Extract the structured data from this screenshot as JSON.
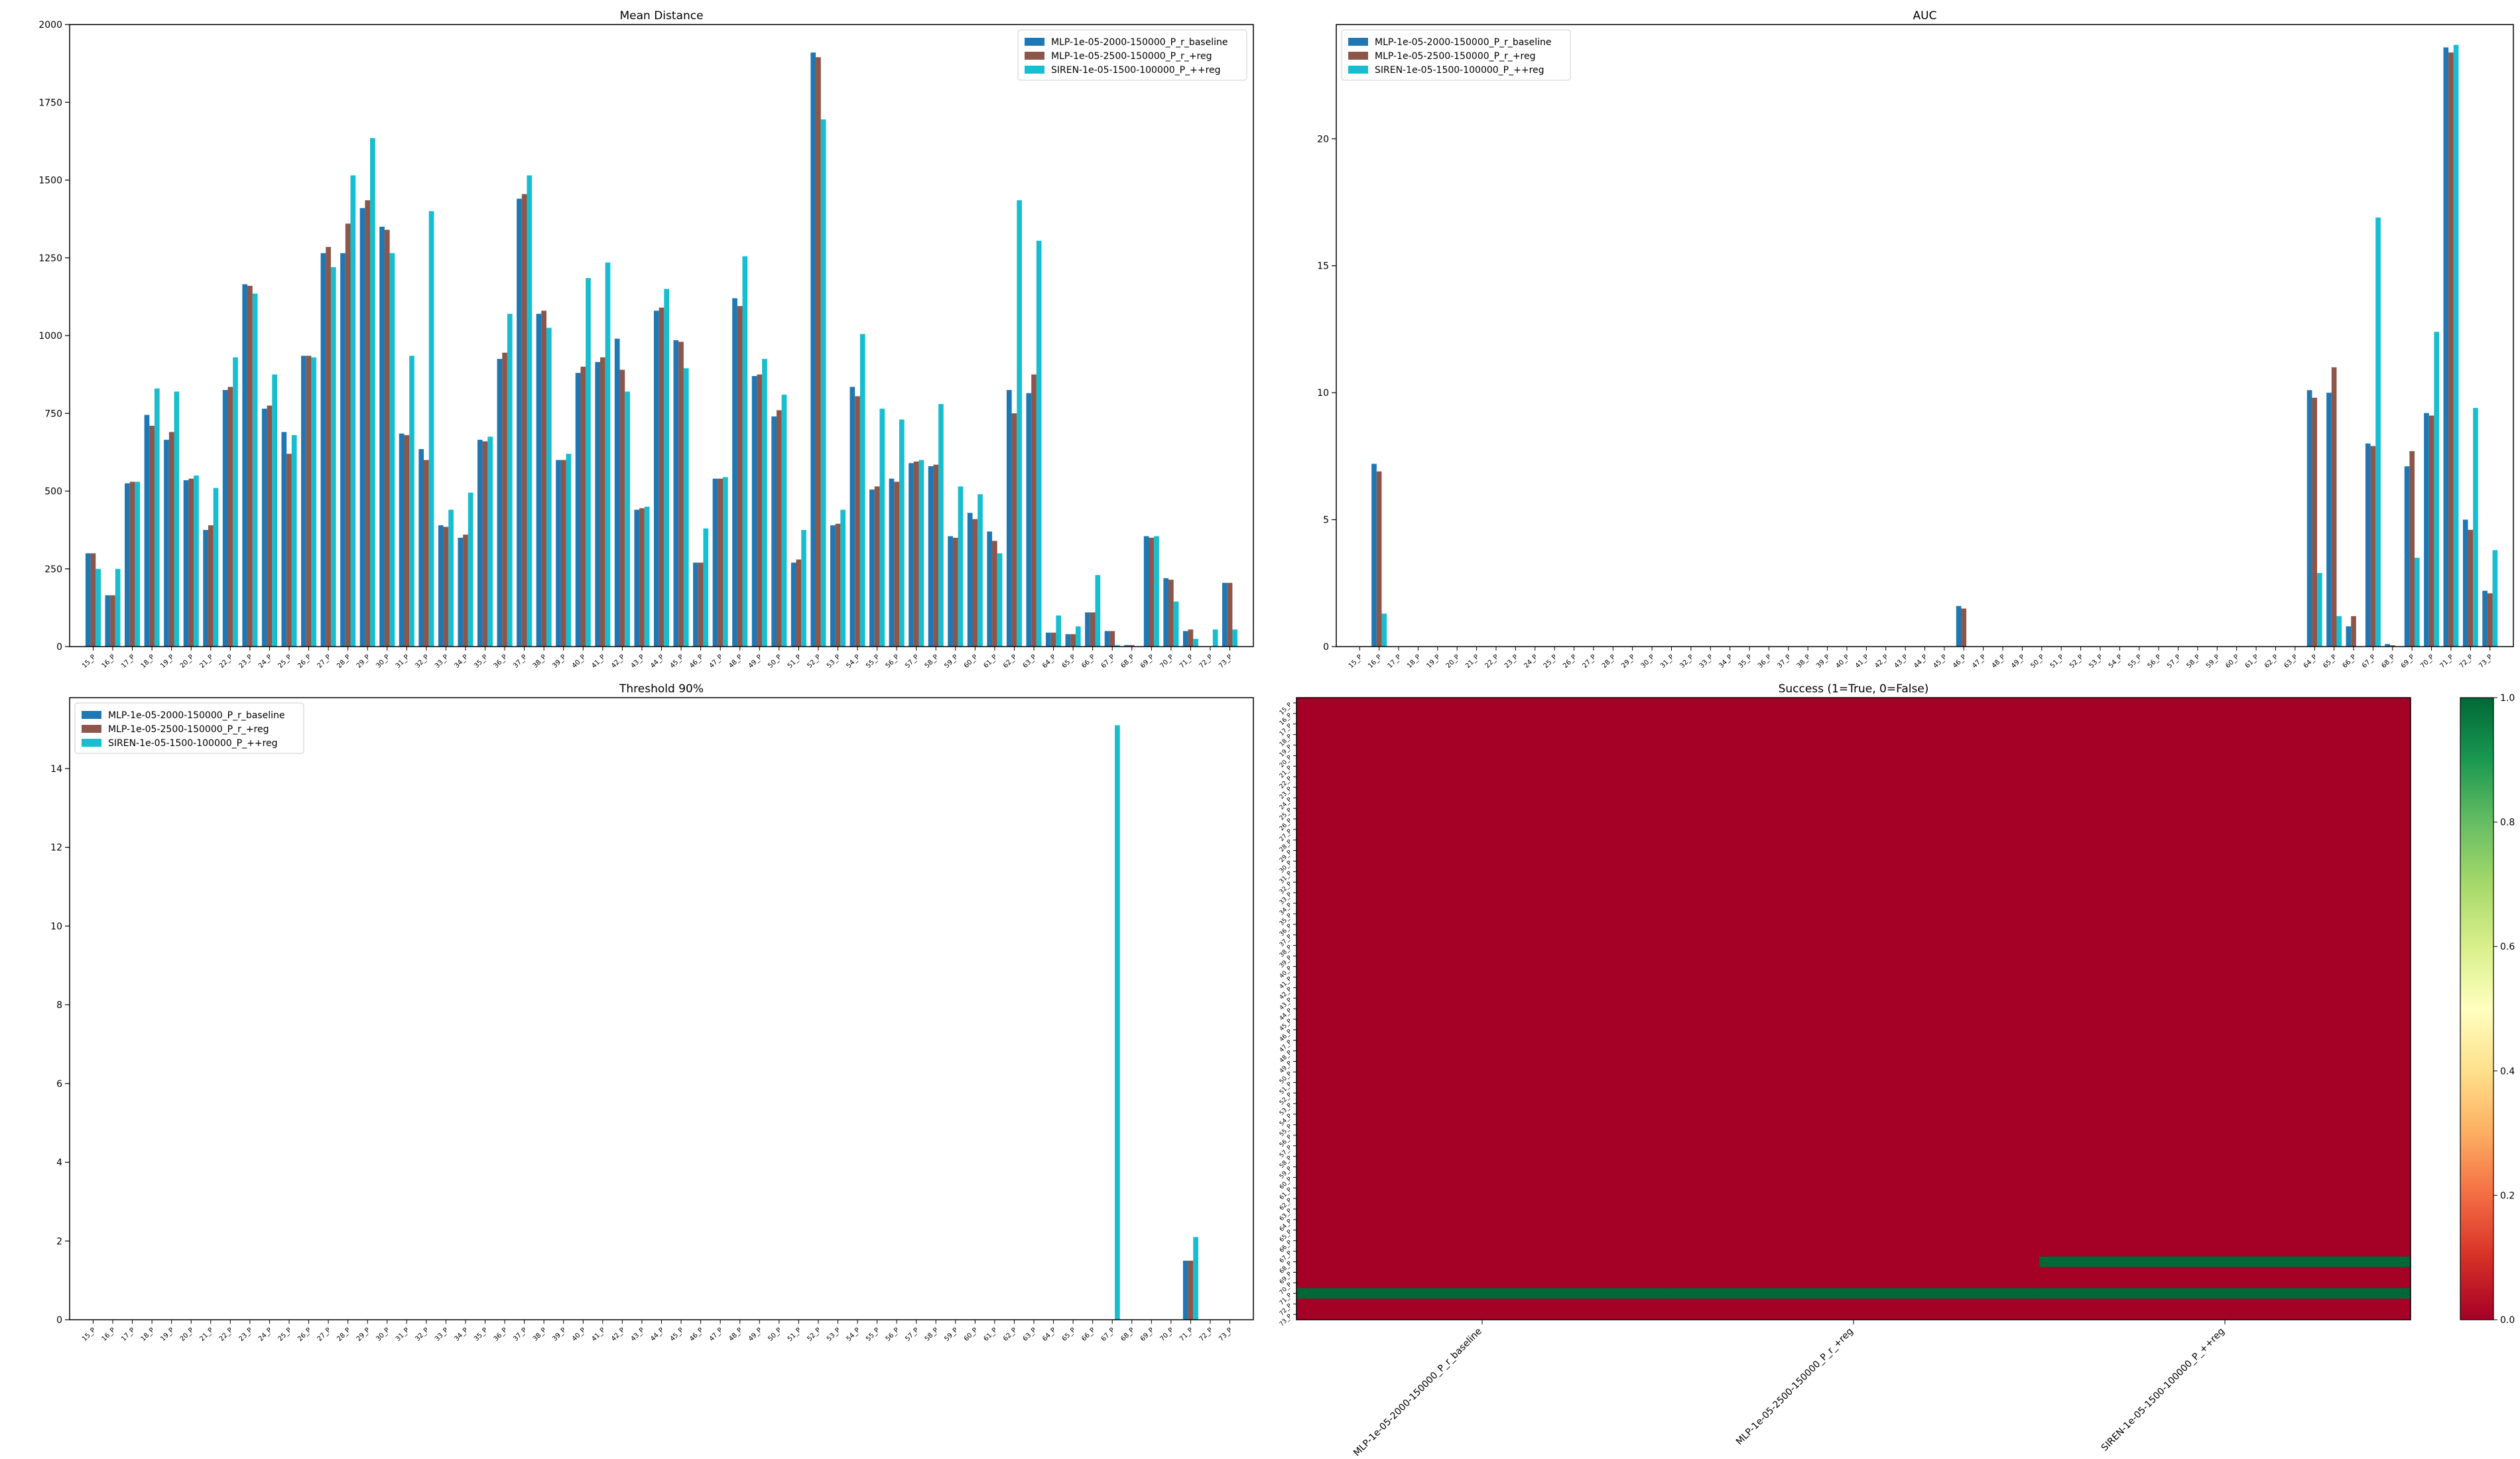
{
  "categories": [
    "15_P",
    "16_P",
    "17_P",
    "18_P",
    "19_P",
    "20_P",
    "21_P",
    "22_P",
    "23_P",
    "24_P",
    "25_P",
    "26_P",
    "27_P",
    "28_P",
    "29_P",
    "30_P",
    "31_P",
    "32_P",
    "33_P",
    "34_P",
    "35_P",
    "36_P",
    "37_P",
    "38_P",
    "39_P",
    "40_P",
    "41_P",
    "42_P",
    "43_P",
    "44_P",
    "45_P",
    "46_P",
    "47_P",
    "48_P",
    "49_P",
    "50_P",
    "51_P",
    "52_P",
    "53_P",
    "54_P",
    "55_P",
    "56_P",
    "57_P",
    "58_P",
    "59_P",
    "60_P",
    "61_P",
    "62_P",
    "63_P",
    "64_P",
    "65_P",
    "66_P",
    "67_P",
    "68_P",
    "69_P",
    "70_P",
    "71_P",
    "72_P",
    "73_P"
  ],
  "series_names": [
    "MLP-1e-05-2000-150000_P_r_baseline",
    "MLP-1e-05-2500-150000_P_r_+reg",
    "SIREN-1e-05-1500-100000_P_++reg"
  ],
  "colors": {
    "s0": "#1f77b4",
    "s1": "#8c564b",
    "s2": "#17becf",
    "fail": "#a50026",
    "success": "#006837"
  },
  "chart_data": [
    {
      "type": "bar",
      "title": "Mean Distance",
      "ylim": [
        0,
        2000
      ],
      "yticks": [
        0,
        250,
        500,
        750,
        1000,
        1250,
        1500,
        1750,
        2000
      ],
      "legend": "top-right",
      "series": [
        {
          "name": "MLP-1e-05-2000-150000_P_r_baseline",
          "values": [
            300,
            165,
            525,
            745,
            665,
            535,
            375,
            825,
            1165,
            765,
            690,
            935,
            1265,
            1265,
            1410,
            1350,
            685,
            635,
            390,
            350,
            665,
            925,
            1440,
            1070,
            600,
            880,
            915,
            990,
            440,
            1080,
            985,
            270,
            540,
            1120,
            870,
            740,
            270,
            1910,
            390,
            835,
            505,
            540,
            590,
            580,
            355,
            430,
            370,
            825,
            815,
            45,
            40,
            110,
            50,
            5,
            355,
            220,
            50,
            0,
            205
          ]
        },
        {
          "name": "MLP-1e-05-2500-150000_P_r_+reg",
          "values": [
            300,
            165,
            530,
            710,
            690,
            540,
            390,
            835,
            1160,
            775,
            620,
            935,
            1285,
            1360,
            1435,
            1340,
            680,
            600,
            385,
            360,
            660,
            945,
            1455,
            1080,
            600,
            900,
            930,
            890,
            445,
            1090,
            980,
            270,
            540,
            1095,
            875,
            760,
            280,
            1895,
            395,
            805,
            515,
            530,
            595,
            585,
            350,
            410,
            340,
            750,
            875,
            45,
            40,
            110,
            50,
            5,
            350,
            215,
            55,
            0,
            205
          ]
        },
        {
          "name": "SIREN-1e-05-1500-100000_P_++reg",
          "values": [
            250,
            250,
            530,
            830,
            820,
            550,
            510,
            930,
            1135,
            875,
            680,
            930,
            1220,
            1515,
            1635,
            1265,
            935,
            1400,
            440,
            495,
            675,
            1070,
            1515,
            1025,
            620,
            1185,
            1235,
            820,
            450,
            1150,
            895,
            380,
            545,
            1255,
            925,
            810,
            375,
            1695,
            440,
            1005,
            765,
            730,
            600,
            780,
            515,
            490,
            300,
            1435,
            1305,
            100,
            65,
            230,
            5,
            0,
            355,
            145,
            25,
            55,
            55
          ]
        }
      ]
    },
    {
      "type": "bar",
      "title": "AUC",
      "ylim": [
        0,
        24.5
      ],
      "yticks": [
        0,
        5,
        10,
        15,
        20
      ],
      "legend": "top-left",
      "series": [
        {
          "name": "MLP-1e-05-2000-150000_P_r_baseline",
          "values": [
            0,
            7.2,
            0,
            0,
            0,
            0,
            0,
            0,
            0,
            0,
            0,
            0,
            0,
            0,
            0,
            0,
            0,
            0,
            0,
            0,
            0,
            0,
            0,
            0,
            0,
            0,
            0,
            0,
            0,
            0,
            0,
            1.6,
            0,
            0,
            0,
            0,
            0,
            0,
            0,
            0,
            0,
            0,
            0,
            0,
            0,
            0,
            0,
            0,
            0,
            10.1,
            10.0,
            0.8,
            8.0,
            0.1,
            7.1,
            9.2,
            23.6,
            5.0,
            2.2
          ]
        },
        {
          "name": "MLP-1e-05-2500-150000_P_r_+reg",
          "values": [
            0,
            6.9,
            0,
            0,
            0,
            0,
            0,
            0,
            0,
            0,
            0,
            0,
            0,
            0,
            0,
            0,
            0,
            0,
            0,
            0,
            0,
            0,
            0,
            0,
            0,
            0,
            0,
            0,
            0,
            0,
            0,
            1.5,
            0,
            0,
            0,
            0,
            0,
            0,
            0,
            0,
            0,
            0,
            0,
            0,
            0,
            0,
            0,
            0,
            0,
            9.8,
            11.0,
            1.2,
            7.9,
            0.05,
            7.7,
            9.1,
            23.4,
            4.6,
            2.1
          ]
        },
        {
          "name": "SIREN-1e-05-1500-100000_P_++reg",
          "values": [
            0,
            1.3,
            0,
            0,
            0,
            0,
            0,
            0,
            0,
            0,
            0,
            0,
            0,
            0,
            0,
            0,
            0,
            0,
            0,
            0,
            0,
            0,
            0,
            0,
            0,
            0,
            0,
            0,
            0,
            0,
            0,
            0,
            0,
            0,
            0,
            0,
            0,
            0,
            0,
            0,
            0,
            0,
            0,
            0,
            0,
            0,
            0,
            0,
            0,
            2.9,
            1.2,
            0,
            16.9,
            0,
            3.5,
            12.4,
            23.7,
            9.4,
            3.8
          ]
        }
      ]
    },
    {
      "type": "bar",
      "title": "Threshold 90%",
      "ylim": [
        0,
        15.8
      ],
      "yticks": [
        0,
        2,
        4,
        6,
        8,
        10,
        12,
        14
      ],
      "legend": "top-left",
      "series": [
        {
          "name": "MLP-1e-05-2000-150000_P_r_baseline",
          "values": [
            0,
            0,
            0,
            0,
            0,
            0,
            0,
            0,
            0,
            0,
            0,
            0,
            0,
            0,
            0,
            0,
            0,
            0,
            0,
            0,
            0,
            0,
            0,
            0,
            0,
            0,
            0,
            0,
            0,
            0,
            0,
            0,
            0,
            0,
            0,
            0,
            0,
            0,
            0,
            0,
            0,
            0,
            0,
            0,
            0,
            0,
            0,
            0,
            0,
            0,
            0,
            0,
            0,
            0,
            0,
            0,
            1.5,
            0,
            0
          ]
        },
        {
          "name": "MLP-1e-05-2500-150000_P_r_+reg",
          "values": [
            0,
            0,
            0,
            0,
            0,
            0,
            0,
            0,
            0,
            0,
            0,
            0,
            0,
            0,
            0,
            0,
            0,
            0,
            0,
            0,
            0,
            0,
            0,
            0,
            0,
            0,
            0,
            0,
            0,
            0,
            0,
            0,
            0,
            0,
            0,
            0,
            0,
            0,
            0,
            0,
            0,
            0,
            0,
            0,
            0,
            0,
            0,
            0,
            0,
            0,
            0,
            0,
            0,
            0,
            0,
            0,
            1.5,
            0,
            0
          ]
        },
        {
          "name": "SIREN-1e-05-1500-100000_P_++reg",
          "values": [
            0,
            0,
            0,
            0,
            0,
            0,
            0,
            0,
            0,
            0,
            0,
            0,
            0,
            0,
            0,
            0,
            0,
            0,
            0,
            0,
            0,
            0,
            0,
            0,
            0,
            0,
            0,
            0,
            0,
            0,
            0,
            0,
            0,
            0,
            0,
            0,
            0,
            0,
            0,
            0,
            0,
            0,
            0,
            0,
            0,
            0,
            0,
            0,
            0,
            0,
            0,
            0,
            15.1,
            0,
            0,
            0,
            2.1,
            0,
            0
          ]
        }
      ]
    },
    {
      "type": "heatmap",
      "title": "Success (1=True, 0=False)",
      "columns": [
        "MLP-1e-05-2000-150000_P_r_baseline",
        "MLP-1e-05-2500-150000_P_r_+reg",
        "SIREN-1e-05-1500-100000_P_++reg"
      ],
      "success_cells": [
        [
          56,
          0
        ],
        [
          56,
          1
        ],
        [
          56,
          2
        ],
        [
          53,
          2
        ]
      ],
      "colorbar_range": [
        0,
        1
      ],
      "colorbar_ticks": [
        0.0,
        0.2,
        0.4,
        0.6,
        0.8,
        1.0
      ],
      "colormap": "RdYlGn"
    }
  ]
}
